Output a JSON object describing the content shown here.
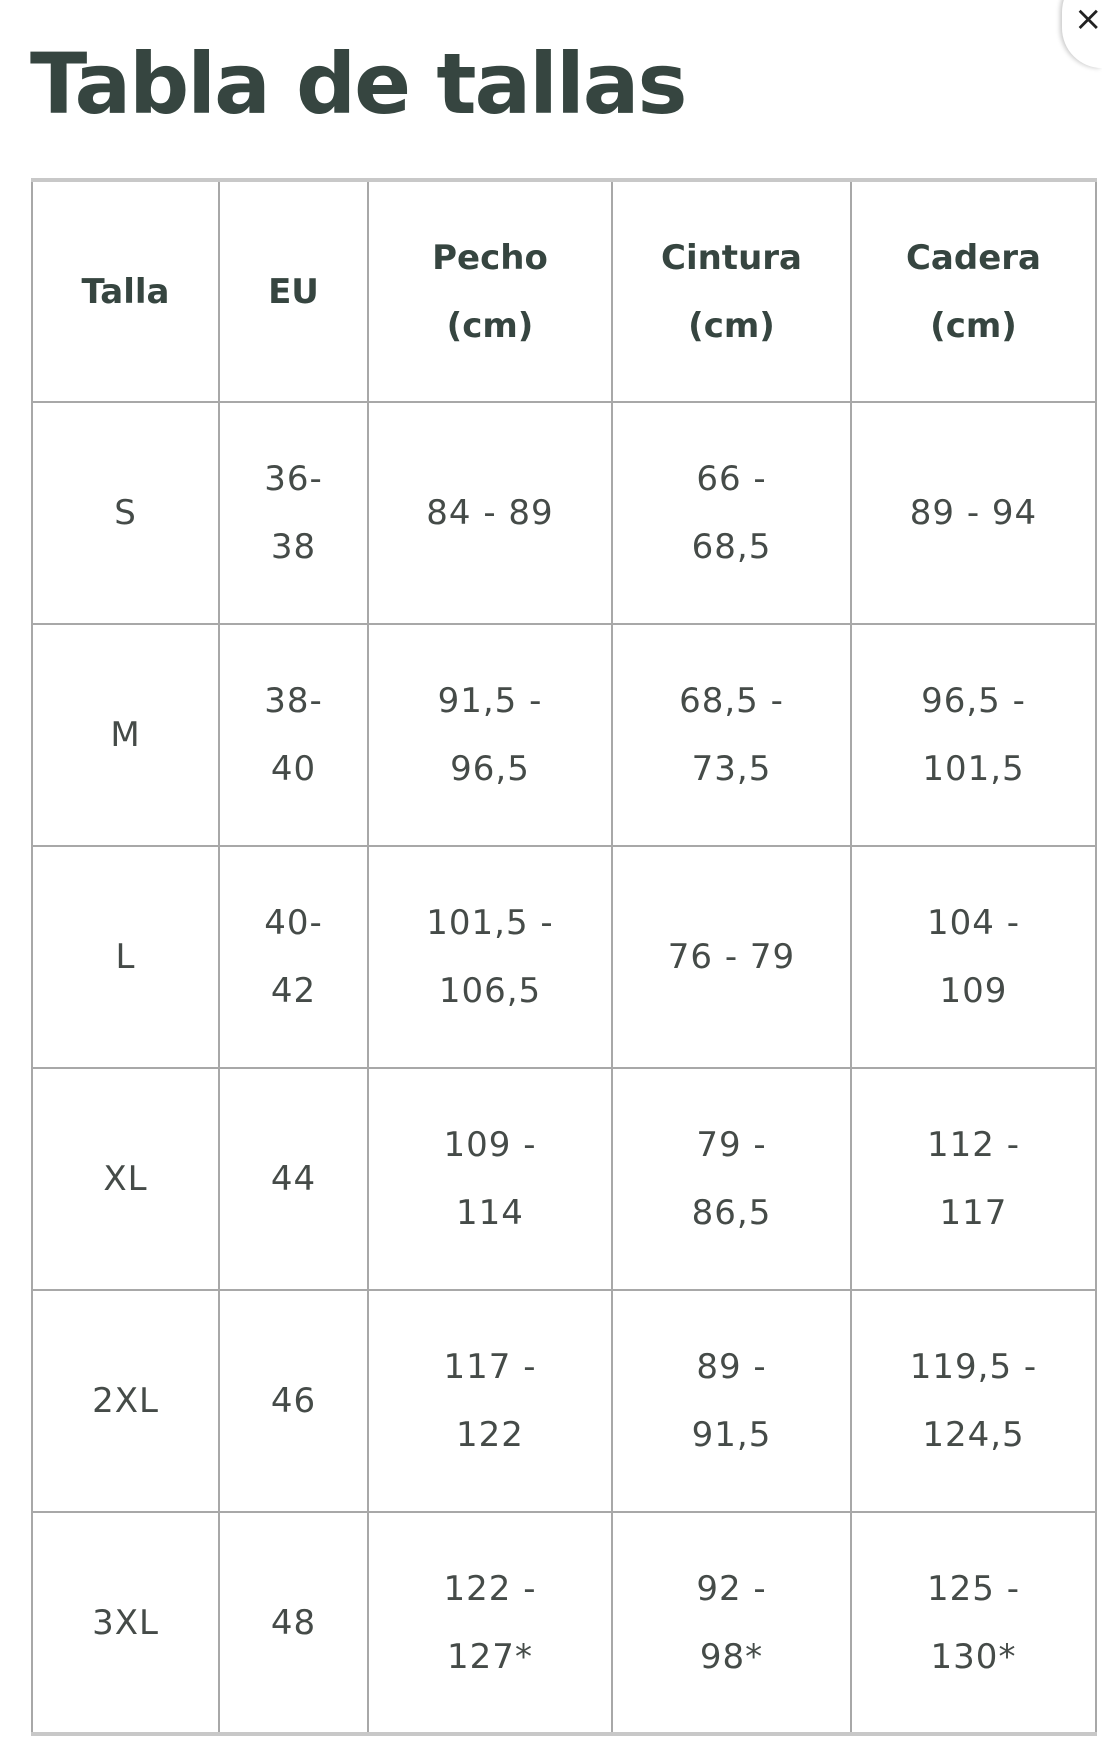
{
  "close_label": "×",
  "title": "Tabla de tallas",
  "headers": [
    [
      "Talla"
    ],
    [
      "EU"
    ],
    [
      "Pecho",
      "(cm)"
    ],
    [
      "Cintura",
      "(cm)"
    ],
    [
      "Cadera",
      "(cm)"
    ]
  ],
  "rows": [
    [
      [
        "S"
      ],
      [
        "36-",
        "38"
      ],
      [
        "84 - 89"
      ],
      [
        "66 -",
        "68,5"
      ],
      [
        "89 - 94"
      ]
    ],
    [
      [
        "M"
      ],
      [
        "38-",
        "40"
      ],
      [
        "91,5 -",
        "96,5"
      ],
      [
        "68,5 -",
        "73,5"
      ],
      [
        "96,5 -",
        "101,5"
      ]
    ],
    [
      [
        "L"
      ],
      [
        "40-",
        "42"
      ],
      [
        "101,5 -",
        "106,5"
      ],
      [
        "76 - 79"
      ],
      [
        "104 -",
        "109"
      ]
    ],
    [
      [
        "XL"
      ],
      [
        "44"
      ],
      [
        "109 -",
        "114"
      ],
      [
        "79 -",
        "86,5"
      ],
      [
        "112 -",
        "117"
      ]
    ],
    [
      [
        "2XL"
      ],
      [
        "46"
      ],
      [
        "117 -",
        "122"
      ],
      [
        "89 -",
        "91,5"
      ],
      [
        "119,5 -",
        "124,5"
      ]
    ],
    [
      [
        "3XL"
      ],
      [
        "48"
      ],
      [
        "122 -",
        "127*"
      ],
      [
        "92 -",
        "98*"
      ],
      [
        "125 -",
        "130*"
      ]
    ]
  ]
}
